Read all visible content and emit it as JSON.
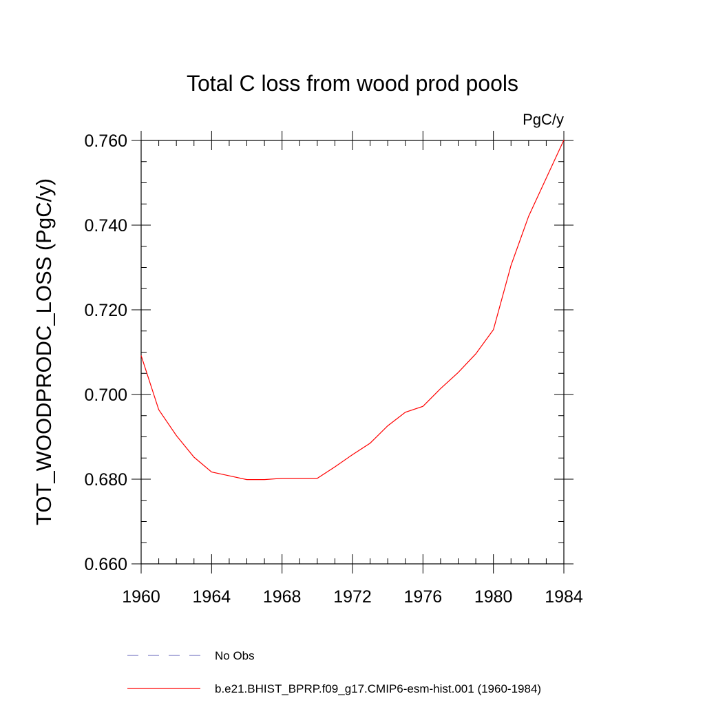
{
  "chart_data": {
    "type": "line",
    "title": "Total C loss from wood prod pools",
    "units_label": "PgC/y",
    "ylabel": "TOT_WOODPRODC_LOSS  (PgC/y)",
    "xlabel": "",
    "xlim": [
      1960,
      1984
    ],
    "ylim": [
      0.66,
      0.76
    ],
    "x_ticks": [
      1960,
      1964,
      1968,
      1972,
      1976,
      1980,
      1984
    ],
    "x_tick_labels": [
      "1960",
      "1964",
      "1968",
      "1972",
      "1976",
      "1980",
      "1984"
    ],
    "x_minor_step": 1,
    "y_ticks": [
      0.66,
      0.68,
      0.7,
      0.72,
      0.74,
      0.76
    ],
    "y_tick_labels": [
      "0.660",
      "0.680",
      "0.700",
      "0.720",
      "0.740",
      "0.760"
    ],
    "y_minor_step": 0.005,
    "grid": false,
    "legend_position": "bottom",
    "series": [
      {
        "name": "No Obs",
        "color": "#8080c8",
        "dash": "dashed",
        "x": [],
        "values": []
      },
      {
        "name": "b.e21.BHIST_BPRP.f09_g17.CMIP6-esm-hist.001 (1960-1984)",
        "color": "#ff0000",
        "dash": "solid",
        "x": [
          1960,
          1961,
          1962,
          1963,
          1964,
          1965,
          1966,
          1967,
          1968,
          1969,
          1970,
          1971,
          1972,
          1973,
          1974,
          1975,
          1976,
          1977,
          1978,
          1979,
          1980,
          1981,
          1982,
          1983,
          1984
        ],
        "values": [
          0.7092,
          0.6964,
          0.6903,
          0.6852,
          0.6817,
          0.6808,
          0.6799,
          0.6799,
          0.6802,
          0.6802,
          0.6802,
          0.6829,
          0.6858,
          0.6885,
          0.6926,
          0.6958,
          0.6972,
          0.7014,
          0.7052,
          0.7096,
          0.7153,
          0.7305,
          0.7421,
          0.7511,
          0.7601
        ]
      }
    ]
  }
}
